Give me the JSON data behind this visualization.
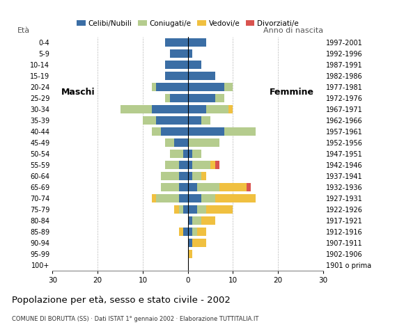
{
  "age_groups": [
    "100+",
    "95-99",
    "90-94",
    "85-89",
    "80-84",
    "75-79",
    "70-74",
    "65-69",
    "60-64",
    "55-59",
    "50-54",
    "45-49",
    "40-44",
    "35-39",
    "30-34",
    "25-29",
    "20-24",
    "15-19",
    "10-14",
    "5-9",
    "0-4"
  ],
  "birth_years": [
    "1901 o prima",
    "1902-1906",
    "1907-1911",
    "1912-1916",
    "1917-1921",
    "1922-1926",
    "1927-1931",
    "1932-1936",
    "1937-1941",
    "1942-1946",
    "1947-1951",
    "1952-1956",
    "1957-1961",
    "1962-1966",
    "1967-1971",
    "1972-1976",
    "1977-1981",
    "1982-1986",
    "1987-1991",
    "1992-1996",
    "1997-2001"
  ],
  "males": {
    "celibi": [
      0,
      0,
      0,
      1,
      0,
      1,
      2,
      2,
      2,
      2,
      1,
      3,
      6,
      7,
      8,
      4,
      7,
      5,
      5,
      4,
      5
    ],
    "coniugati": [
      0,
      0,
      0,
      0,
      0,
      1,
      5,
      4,
      4,
      3,
      3,
      2,
      2,
      3,
      7,
      1,
      1,
      0,
      0,
      0,
      0
    ],
    "vedovi": [
      0,
      0,
      0,
      1,
      0,
      1,
      1,
      0,
      0,
      0,
      0,
      0,
      0,
      0,
      0,
      0,
      0,
      0,
      0,
      0,
      0
    ],
    "divorziati": [
      0,
      0,
      0,
      0,
      0,
      0,
      0,
      0,
      0,
      0,
      0,
      0,
      0,
      0,
      0,
      0,
      0,
      0,
      0,
      0,
      0
    ]
  },
  "females": {
    "celibi": [
      0,
      0,
      1,
      1,
      1,
      2,
      3,
      2,
      1,
      1,
      1,
      0,
      8,
      3,
      4,
      6,
      8,
      6,
      3,
      1,
      4
    ],
    "coniugati": [
      0,
      0,
      0,
      1,
      2,
      2,
      3,
      5,
      2,
      4,
      2,
      7,
      7,
      2,
      5,
      2,
      2,
      0,
      0,
      0,
      0
    ],
    "vedovi": [
      0,
      1,
      3,
      2,
      3,
      6,
      9,
      6,
      1,
      1,
      0,
      0,
      0,
      0,
      1,
      0,
      0,
      0,
      0,
      0,
      0
    ],
    "divorziati": [
      0,
      0,
      0,
      0,
      0,
      0,
      0,
      1,
      0,
      1,
      0,
      0,
      0,
      0,
      0,
      0,
      0,
      0,
      0,
      0,
      0
    ]
  },
  "colors": {
    "celibi": "#3b6ea5",
    "coniugati": "#b5cc8e",
    "vedovi": "#f0c040",
    "divorziati": "#d9534f"
  },
  "xlim": 30,
  "title": "Popolazione per età, sesso e stato civile - 2002",
  "subtitle": "COMUNE DI BORUTTA (SS) · Dati ISTAT 1° gennaio 2002 · Elaborazione TUTTITALIA.IT",
  "legend_labels": [
    "Celibi/Nubili",
    "Coniugati/e",
    "Vedovi/e",
    "Divorziati/e"
  ],
  "ylabel_left": "Età",
  "ylabel_right": "Anno di nascita",
  "label_maschi": "Maschi",
  "label_femmine": "Femmine",
  "bg_color": "#ffffff",
  "grid_color": "#bbbbbb"
}
